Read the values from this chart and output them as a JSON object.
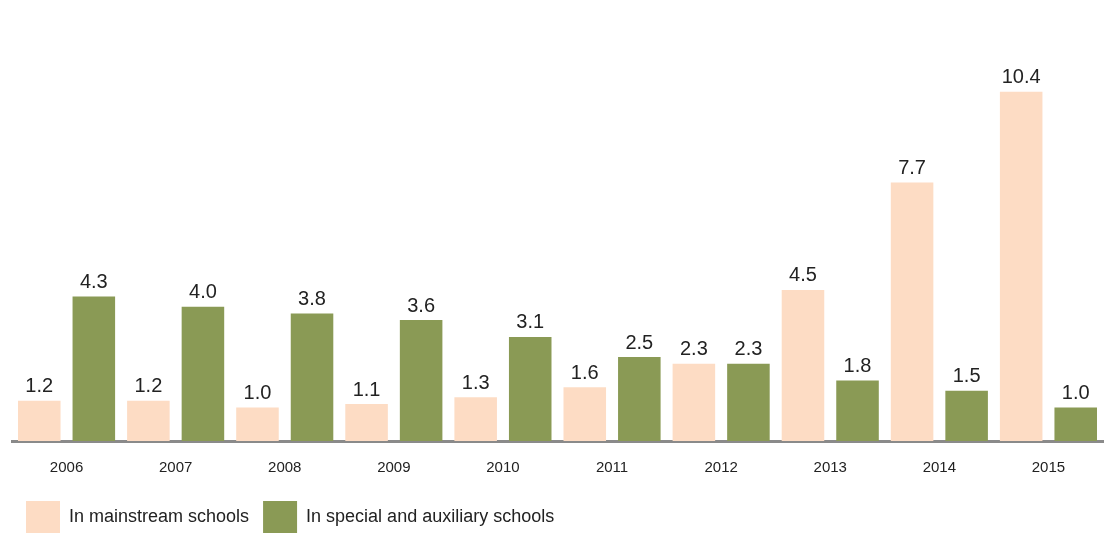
{
  "chart_data": {
    "type": "bar",
    "categories": [
      "2006",
      "2007",
      "2008",
      "2009",
      "2010",
      "2011",
      "2012",
      "2013",
      "2014",
      "2015"
    ],
    "series": [
      {
        "name": "In mainstream schools",
        "color": "#fddcc4",
        "values": [
          1.2,
          1.2,
          1.0,
          1.1,
          1.3,
          1.6,
          2.3,
          4.5,
          7.7,
          10.4
        ],
        "value_labels": [
          "1.2",
          "1.2",
          "1.0",
          "1.1",
          "1.3",
          "1.6",
          "2.3",
          "4.5",
          "7.7",
          "10.4"
        ]
      },
      {
        "name": "In special and auxiliary schools",
        "color": "#8a9a55",
        "values": [
          4.3,
          4.0,
          3.8,
          3.6,
          3.1,
          2.5,
          2.3,
          1.8,
          1.5,
          1.0
        ],
        "value_labels": [
          "4.3",
          "4.0",
          "3.8",
          "3.6",
          "3.1",
          "2.5",
          "2.3",
          "1.8",
          "1.5",
          "1.0"
        ]
      }
    ],
    "grid": false,
    "legend": "bottom"
  }
}
